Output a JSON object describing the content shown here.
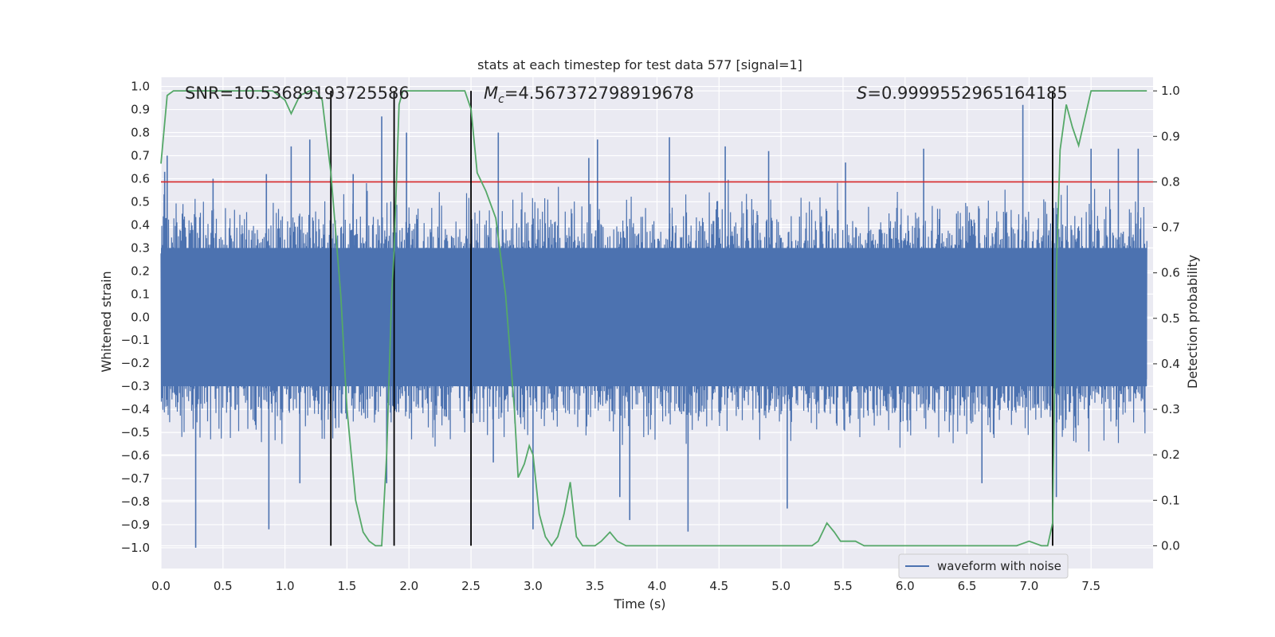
{
  "chart_data": {
    "type": "line",
    "title": "stats at each timestep for test data 577 [signal=1]",
    "xlabel": "Time (s)",
    "ylabel_left": "Whitened strain",
    "ylabel_right": "Detection probability",
    "xlim": [
      0.0,
      8.0
    ],
    "ylim_left": [
      -1.09,
      1.04
    ],
    "ylim_right": [
      -0.05,
      1.03
    ],
    "x_ticks": [
      0.0,
      0.5,
      1.0,
      1.5,
      2.0,
      2.5,
      3.0,
      3.5,
      4.0,
      4.5,
      5.0,
      5.5,
      6.0,
      6.5,
      7.0,
      7.5
    ],
    "x_tick_labels": [
      "0.0",
      "0.5",
      "1.0",
      "1.5",
      "2.0",
      "2.5",
      "3.0",
      "3.5",
      "4.0",
      "4.5",
      "5.0",
      "5.5",
      "6.0",
      "6.5",
      "7.0",
      "7.5"
    ],
    "y_left_ticks": [
      1.0,
      0.9,
      0.8,
      0.7,
      0.6,
      0.5,
      0.4,
      0.3,
      0.2,
      0.1,
      0.0,
      -0.1,
      -0.2,
      -0.3,
      -0.4,
      -0.5,
      -0.6,
      -0.7,
      -0.8,
      -0.9,
      -1.0
    ],
    "y_left_tick_labels": [
      "1.0",
      "0.9",
      "0.8",
      "0.7",
      "0.6",
      "0.5",
      "0.4",
      "0.3",
      "0.2",
      "0.1",
      "0.0",
      "−0.1",
      "−0.2",
      "−0.3",
      "−0.4",
      "−0.5",
      "−0.6",
      "−0.7",
      "−0.8",
      "−0.9",
      "−1.0"
    ],
    "y_right_ticks": [
      1.0,
      0.9,
      0.8,
      0.7,
      0.6,
      0.5,
      0.4,
      0.3,
      0.2,
      0.1,
      0.0
    ],
    "y_right_tick_labels": [
      "1.0",
      "0.9",
      "0.8",
      "0.7",
      "0.6",
      "0.5",
      "0.4",
      "0.3",
      "0.2",
      "0.1",
      "0.0"
    ],
    "annotations": {
      "snr": "SNR=10.53689193725586",
      "mc_symbol": "M",
      "mc_subscript": "c",
      "mc_value": "=4.567372798919678",
      "s_symbol": "S",
      "s_value": "=0.9999552965164185"
    },
    "threshold": {
      "value": 0.8,
      "axis": "right",
      "color": "#d62728"
    },
    "vertical_lines": [
      1.37,
      1.88,
      2.5,
      7.19
    ],
    "series": [
      {
        "name": "waveform with noise",
        "axis": "left",
        "color": "#4c72b0",
        "style": "noise",
        "envelope": 0.45,
        "spikes": [
          {
            "x": 0.03,
            "y": 0.63
          },
          {
            "x": 0.05,
            "y": 0.7
          },
          {
            "x": 0.28,
            "y": -1.0
          },
          {
            "x": 0.42,
            "y": 0.6
          },
          {
            "x": 0.85,
            "y": 0.62
          },
          {
            "x": 0.87,
            "y": -0.92
          },
          {
            "x": 1.05,
            "y": 0.74
          },
          {
            "x": 1.12,
            "y": -0.72
          },
          {
            "x": 1.2,
            "y": 0.77
          },
          {
            "x": 1.55,
            "y": 0.62
          },
          {
            "x": 1.78,
            "y": 0.87
          },
          {
            "x": 1.82,
            "y": -0.72
          },
          {
            "x": 1.98,
            "y": 0.8
          },
          {
            "x": 2.72,
            "y": 0.8
          },
          {
            "x": 2.68,
            "y": -0.63
          },
          {
            "x": 3.0,
            "y": -0.92
          },
          {
            "x": 3.45,
            "y": 0.69
          },
          {
            "x": 3.52,
            "y": 0.77
          },
          {
            "x": 3.7,
            "y": -0.78
          },
          {
            "x": 3.78,
            "y": -0.88
          },
          {
            "x": 4.1,
            "y": 0.78
          },
          {
            "x": 4.25,
            "y": -0.93
          },
          {
            "x": 4.55,
            "y": 0.74
          },
          {
            "x": 4.9,
            "y": 0.72
          },
          {
            "x": 5.05,
            "y": -0.83
          },
          {
            "x": 5.52,
            "y": 0.67
          },
          {
            "x": 6.15,
            "y": 0.73
          },
          {
            "x": 6.62,
            "y": -0.72
          },
          {
            "x": 6.95,
            "y": 0.92
          },
          {
            "x": 7.22,
            "y": -0.78
          },
          {
            "x": 7.5,
            "y": 0.73
          },
          {
            "x": 7.72,
            "y": 0.73
          },
          {
            "x": 7.88,
            "y": 0.73
          }
        ]
      },
      {
        "name": "detection probability",
        "axis": "right",
        "color": "#55a868",
        "style": "line",
        "x": [
          0.0,
          0.05,
          0.1,
          0.2,
          0.3,
          0.4,
          0.5,
          0.6,
          0.7,
          0.8,
          0.9,
          0.95,
          1.0,
          1.05,
          1.12,
          1.2,
          1.25,
          1.3,
          1.37,
          1.45,
          1.5,
          1.57,
          1.63,
          1.68,
          1.73,
          1.78,
          1.82,
          1.86,
          1.88,
          1.92,
          1.95,
          2.0,
          2.05,
          2.1,
          2.2,
          2.3,
          2.4,
          2.45,
          2.5,
          2.55,
          2.62,
          2.7,
          2.78,
          2.85,
          2.88,
          2.93,
          2.97,
          3.0,
          3.05,
          3.1,
          3.15,
          3.2,
          3.25,
          3.3,
          3.35,
          3.4,
          3.5,
          3.55,
          3.62,
          3.68,
          3.75,
          3.85,
          4.0,
          4.5,
          5.0,
          5.2,
          5.25,
          5.3,
          5.37,
          5.43,
          5.48,
          5.55,
          5.6,
          5.67,
          5.75,
          6.0,
          6.5,
          6.9,
          7.0,
          7.1,
          7.15,
          7.19,
          7.22,
          7.25,
          7.3,
          7.35,
          7.4,
          7.45,
          7.5,
          7.55,
          7.6,
          7.95
        ],
        "y": [
          0.84,
          0.99,
          1.0,
          1.0,
          1.0,
          1.0,
          1.0,
          1.0,
          1.0,
          1.0,
          1.0,
          0.99,
          0.98,
          0.95,
          0.99,
          1.0,
          1.0,
          0.98,
          0.82,
          0.55,
          0.3,
          0.1,
          0.03,
          0.01,
          0.0,
          0.0,
          0.2,
          0.55,
          0.65,
          0.97,
          1.0,
          1.0,
          1.0,
          1.0,
          1.0,
          1.0,
          1.0,
          1.0,
          0.96,
          0.82,
          0.78,
          0.72,
          0.55,
          0.3,
          0.15,
          0.18,
          0.22,
          0.2,
          0.07,
          0.02,
          0.0,
          0.02,
          0.07,
          0.14,
          0.02,
          0.0,
          0.0,
          0.01,
          0.03,
          0.01,
          0.0,
          0.0,
          0.0,
          0.0,
          0.0,
          0.0,
          0.0,
          0.01,
          0.05,
          0.03,
          0.01,
          0.01,
          0.01,
          0.0,
          0.0,
          0.0,
          0.0,
          0.0,
          0.01,
          0.0,
          0.0,
          0.05,
          0.6,
          0.87,
          0.97,
          0.92,
          0.88,
          0.94,
          1.0,
          1.0,
          1.0,
          1.0
        ]
      }
    ],
    "legend": {
      "label": "waveform with noise",
      "placement": "lower-right"
    }
  }
}
